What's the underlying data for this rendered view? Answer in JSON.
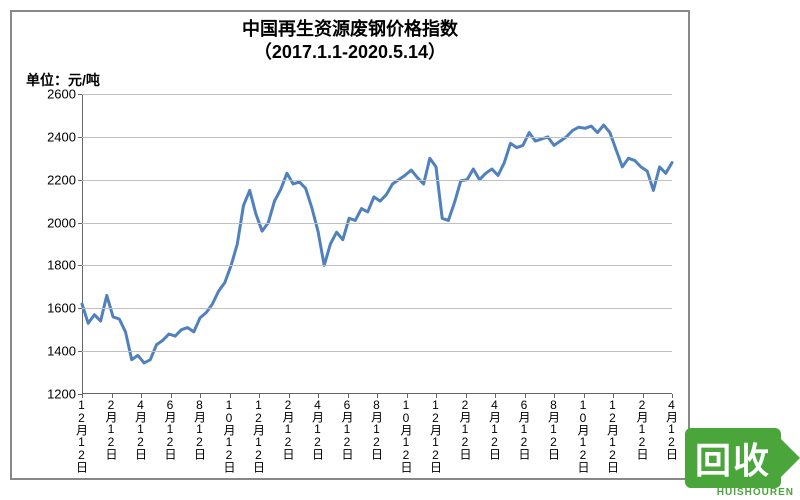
{
  "chart": {
    "type": "line",
    "title_line1": "中国再生资源废钢价格指数",
    "title_line2": "（2017.1.1-2020.5.14）",
    "title_fontsize": 18,
    "unit_label": "单位：元/吨",
    "unit_fontsize": 14,
    "background_color": "#ffffff",
    "border_color": "#888888",
    "grid_color": "#c0c0c0",
    "axis_color": "#666666",
    "line_color": "#4f81bd",
    "line_width": 3,
    "ylim": [
      1200,
      2600
    ],
    "ytick_step": 200,
    "yticks": [
      1200,
      1400,
      1600,
      1800,
      2000,
      2200,
      2400,
      2600
    ],
    "x_labels": [
      "12月12日",
      "2月12日",
      "4月12日",
      "6月12日",
      "8月12日",
      "10月12日",
      "12月12日",
      "2月12日",
      "4月12日",
      "6月12日",
      "8月12日",
      "10月12日",
      "12月12日",
      "2月12日",
      "4月12日",
      "6月12日",
      "8月12日",
      "10月12日",
      "12月12日",
      "2月12日",
      "4月12日"
    ],
    "x_label_fontsize": 12,
    "y_label_fontsize": 13,
    "series": [
      1620,
      1530,
      1570,
      1540,
      1660,
      1560,
      1550,
      1490,
      1360,
      1380,
      1345,
      1360,
      1430,
      1450,
      1480,
      1470,
      1500,
      1510,
      1490,
      1555,
      1580,
      1620,
      1680,
      1720,
      1800,
      1900,
      2080,
      2150,
      2040,
      1960,
      2000,
      2100,
      2155,
      2230,
      2180,
      2190,
      2160,
      2070,
      1960,
      1800,
      1900,
      1955,
      1920,
      2020,
      2010,
      2065,
      2050,
      2120,
      2100,
      2130,
      2180,
      2200,
      2220,
      2245,
      2210,
      2180,
      2300,
      2260,
      2020,
      2010,
      2095,
      2195,
      2200,
      2250,
      2200,
      2230,
      2250,
      2220,
      2280,
      2370,
      2350,
      2360,
      2420,
      2380,
      2390,
      2400,
      2360,
      2380,
      2400,
      2430,
      2445,
      2440,
      2450,
      2420,
      2455,
      2420,
      2340,
      2260,
      2300,
      2290,
      2260,
      2240,
      2150,
      2260,
      2230,
      2280
    ]
  },
  "watermark": {
    "text": "回收",
    "subtext": "HUISHOUREN",
    "box_color": "#4aa53a",
    "text_color": "#ffffff"
  }
}
